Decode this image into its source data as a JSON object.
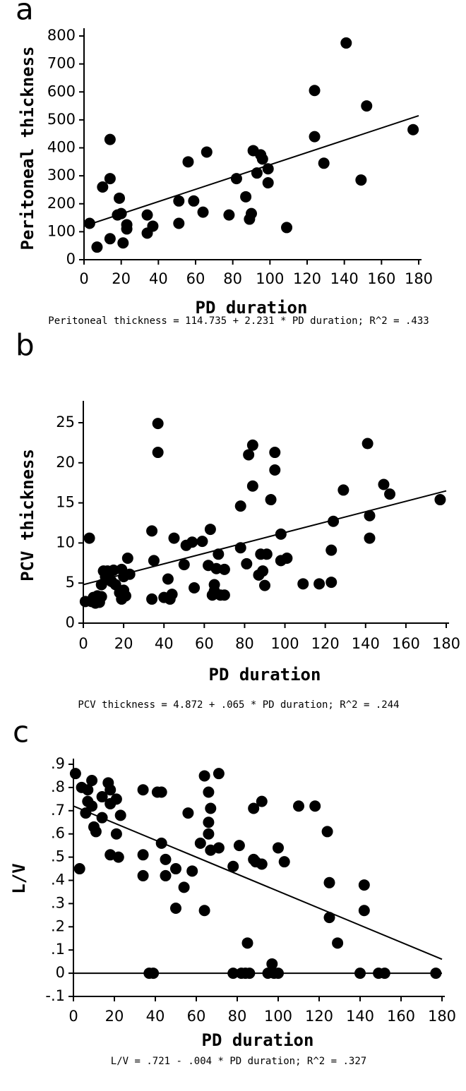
{
  "chart_data": [
    {
      "type": "scatter",
      "panel_label": "a",
      "x_label": "PD duration",
      "y_label": "Peritoneal thickness",
      "caption": "Peritoneal thickness = 114.735 + 2.231 * PD duration; R^2 = .433",
      "xlim": [
        0,
        180
      ],
      "ylim": [
        0,
        800
      ],
      "xticks": [
        0,
        20,
        40,
        60,
        80,
        100,
        120,
        140,
        160,
        180
      ],
      "yticks": [
        0,
        100,
        200,
        300,
        400,
        500,
        600,
        700,
        800
      ],
      "color": "#000000",
      "x": [
        3,
        7,
        10,
        14,
        14,
        14,
        18,
        19,
        20,
        21,
        23,
        23,
        34,
        34,
        37,
        51,
        51,
        56,
        59,
        64,
        66,
        78,
        82,
        87,
        89,
        90,
        91,
        93,
        95,
        96,
        99,
        99,
        109,
        124,
        124,
        129,
        141,
        149,
        152,
        177
      ],
      "values": [
        130,
        45,
        260,
        430,
        290,
        75,
        160,
        220,
        165,
        60,
        125,
        110,
        160,
        95,
        120,
        210,
        130,
        350,
        210,
        170,
        385,
        160,
        290,
        225,
        145,
        165,
        390,
        310,
        375,
        360,
        325,
        275,
        115,
        440,
        605,
        345,
        775,
        285,
        550,
        465
      ],
      "fit": {
        "x": [
          0,
          180
        ],
        "y": [
          120,
          515
        ]
      }
    },
    {
      "type": "scatter",
      "panel_label": "b",
      "x_label": "PD duration",
      "y_label": "PCV thickness",
      "caption": "PCV thickness = 4.872 + .065 * PD duration; R^2 = .244",
      "xlim": [
        0,
        180
      ],
      "ylim": [
        0,
        25
      ],
      "xticks": [
        0,
        20,
        40,
        60,
        80,
        100,
        120,
        140,
        160,
        180
      ],
      "yticks": [
        0,
        5,
        10,
        15,
        20,
        25
      ],
      "color": "#000000",
      "x": [
        1,
        3,
        4,
        5,
        6,
        7,
        8,
        9,
        9,
        10,
        11,
        12,
        13,
        14,
        15,
        16,
        18,
        19,
        19,
        20,
        20,
        21,
        22,
        23,
        34,
        34,
        35,
        37,
        37,
        40,
        42,
        43,
        44,
        45,
        50,
        51,
        54,
        55,
        59,
        62,
        63,
        64,
        65,
        65,
        66,
        67,
        68,
        70,
        70,
        78,
        78,
        81,
        82,
        84,
        84,
        87,
        88,
        89,
        90,
        91,
        93,
        95,
        95,
        98,
        98,
        101,
        109,
        117,
        123,
        124,
        123,
        129,
        141,
        142,
        142,
        149,
        152,
        177
      ],
      "values": [
        2.7,
        10.6,
        2.7,
        3.2,
        2.5,
        3.4,
        2.6,
        3.3,
        4.8,
        6.5,
        5.8,
        6.5,
        6.3,
        5.2,
        6.6,
        4.8,
        3.8,
        6.7,
        3.0,
        4.1,
        5.8,
        3.4,
        8.1,
        6.1,
        3.0,
        11.5,
        7.8,
        24.9,
        21.3,
        3.2,
        5.5,
        3.0,
        3.6,
        10.6,
        7.3,
        9.7,
        10.1,
        4.4,
        10.2,
        7.2,
        11.7,
        3.5,
        4.8,
        4.0,
        6.8,
        8.6,
        3.5,
        3.5,
        6.7,
        9.4,
        14.6,
        7.4,
        21.0,
        22.2,
        17.1,
        6.0,
        8.6,
        6.5,
        4.7,
        8.6,
        15.4,
        21.3,
        19.1,
        7.8,
        11.1,
        8.1,
        4.9,
        4.9,
        5.1,
        12.7,
        9.1,
        16.6,
        22.4,
        13.4,
        10.6,
        17.3,
        16.1,
        15.4
      ],
      "fit": {
        "x": [
          0,
          180
        ],
        "y": [
          4.8,
          16.5
        ]
      }
    },
    {
      "type": "scatter",
      "panel_label": "c",
      "x_label": "PD duration",
      "y_label": "L/V",
      "caption": "L/V = .721 - .004 * PD duration; R^2 = .327",
      "xlim": [
        0,
        180
      ],
      "ylim": [
        -0.1,
        0.9
      ],
      "xticks": [
        0,
        20,
        40,
        60,
        80,
        100,
        120,
        140,
        160,
        180
      ],
      "yticks": [
        {
          "value": -0.1,
          "label": "-.1"
        },
        0,
        {
          "value": 0.1,
          "label": ".1"
        },
        {
          "value": 0.2,
          "label": ".2"
        },
        {
          "value": 0.3,
          "label": ".3"
        },
        {
          "value": 0.4,
          "label": ".4"
        },
        {
          "value": 0.5,
          "label": ".5"
        },
        {
          "value": 0.6,
          "label": ".6"
        },
        {
          "value": 0.7,
          "label": ".7"
        },
        {
          "value": 0.8,
          "label": ".8"
        },
        {
          "value": 0.9,
          "label": ".9"
        }
      ],
      "reference_line": 0,
      "color": "#000000",
      "x": [
        1,
        3,
        4,
        6,
        7,
        7,
        9,
        9,
        10,
        11,
        14,
        14,
        17,
        18,
        18,
        18,
        21,
        21,
        22,
        23,
        34,
        34,
        34,
        37,
        39,
        41,
        43,
        43,
        45,
        45,
        50,
        50,
        54,
        56,
        58,
        62,
        64,
        64,
        66,
        66,
        66,
        67,
        67,
        71,
        71,
        78,
        78,
        81,
        82,
        84,
        85,
        86,
        88,
        88,
        89,
        92,
        92,
        95,
        97,
        98,
        100,
        100,
        103,
        110,
        118,
        124,
        125,
        125,
        129,
        140,
        142,
        142,
        149,
        152,
        177
      ],
      "values": [
        0.86,
        0.45,
        0.8,
        0.69,
        0.79,
        0.74,
        0.83,
        0.72,
        0.63,
        0.61,
        0.67,
        0.76,
        0.82,
        0.79,
        0.73,
        0.51,
        0.75,
        0.6,
        0.5,
        0.68,
        0.79,
        0.51,
        0.42,
        0.0,
        0.0,
        0.78,
        0.56,
        0.78,
        0.49,
        0.42,
        0.45,
        0.28,
        0.37,
        0.69,
        0.44,
        0.56,
        0.85,
        0.27,
        0.78,
        0.65,
        0.6,
        0.71,
        0.53,
        0.86,
        0.54,
        0.46,
        0.0,
        0.55,
        0.0,
        0.0,
        0.13,
        0.0,
        0.71,
        0.49,
        0.48,
        0.47,
        0.74,
        0.0,
        0.04,
        0.0,
        0.54,
        0.0,
        0.48,
        0.72,
        0.72,
        0.61,
        0.39,
        0.24,
        0.13,
        0.0,
        0.38,
        0.27,
        0.0,
        0.0,
        0.0
      ],
      "fit": {
        "x": [
          0,
          180
        ],
        "y": [
          0.72,
          0.06
        ]
      }
    }
  ]
}
